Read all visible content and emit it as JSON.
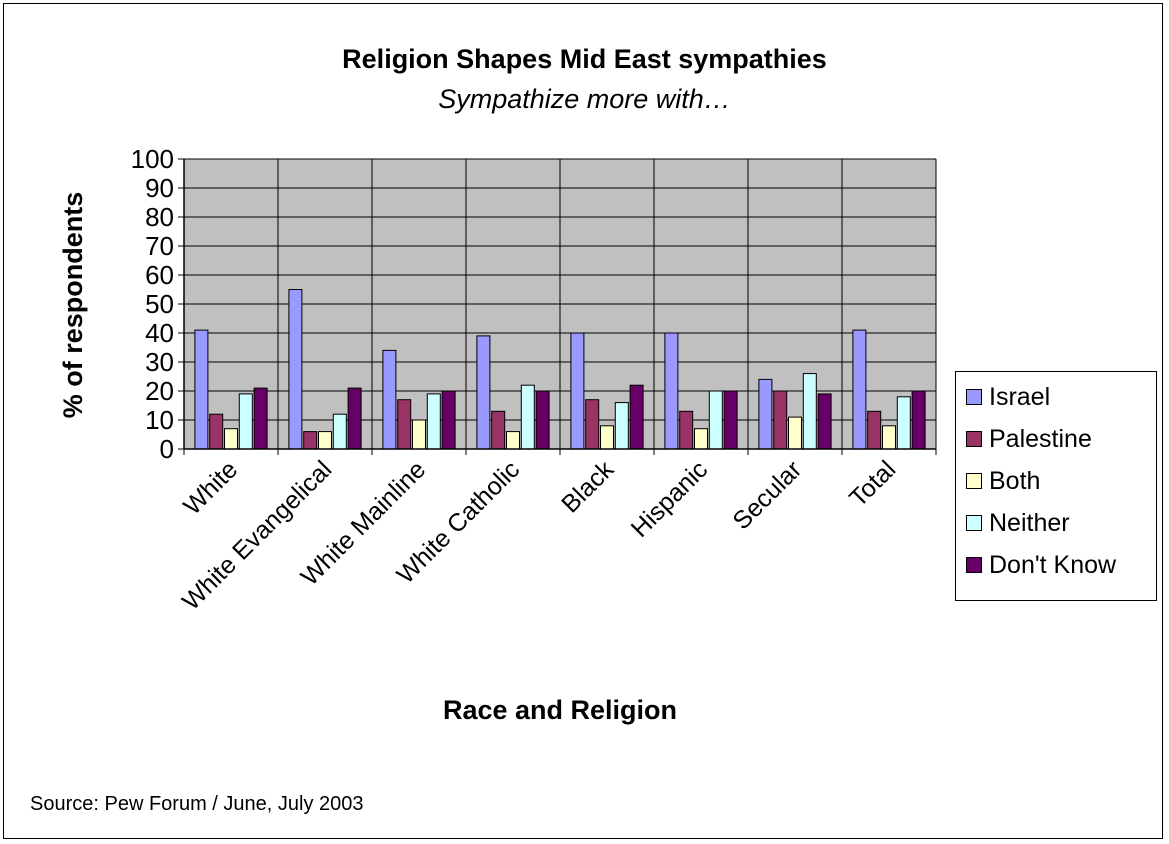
{
  "chart_data": {
    "type": "bar",
    "title": "Religion Shapes Mid East sympathies",
    "subtitle": "Sympathize more with…",
    "xlabel": "Race and Religion",
    "ylabel": "% of respondents",
    "ylim": [
      0,
      100
    ],
    "ytick_step": 10,
    "grid": true,
    "legend_position": "right",
    "categories": [
      "White",
      "White Evangelical",
      "White Mainline",
      "White Catholic",
      "Black",
      "Hispanic",
      "Secular",
      "Total"
    ],
    "series": [
      {
        "name": "Israel",
        "color": "#9999FF",
        "values": [
          41,
          55,
          34,
          39,
          40,
          40,
          24,
          41
        ]
      },
      {
        "name": "Palestine",
        "color": "#993366",
        "values": [
          12,
          6,
          17,
          13,
          17,
          13,
          20,
          13
        ]
      },
      {
        "name": "Both",
        "color": "#FFFFCC",
        "values": [
          7,
          6,
          10,
          6,
          8,
          7,
          11,
          8
        ]
      },
      {
        "name": "Neither",
        "color": "#CCFFFF",
        "values": [
          19,
          12,
          19,
          22,
          16,
          20,
          26,
          18
        ]
      },
      {
        "name": "Don't Know",
        "color": "#660066",
        "values": [
          21,
          21,
          20,
          20,
          22,
          20,
          19,
          20
        ]
      }
    ],
    "source": "Source: Pew Forum / June, July 2003"
  },
  "colors": {
    "plot_background": "#C0C0C0",
    "gridline": "#000000"
  }
}
